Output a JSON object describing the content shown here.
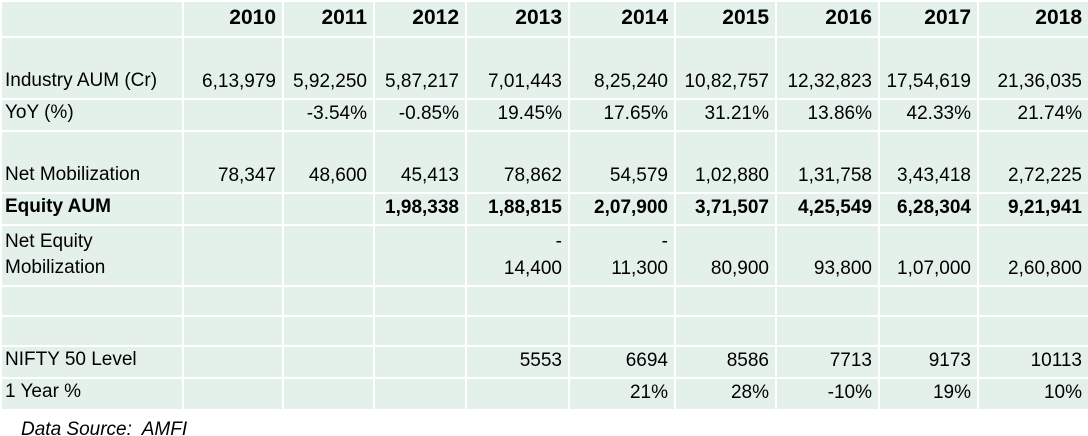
{
  "colors": {
    "cell_bg": "#e4f1ea",
    "gridline": "#ffffff",
    "text": "#000000"
  },
  "table": {
    "corner_label": "",
    "years": [
      "2010",
      "2011",
      "2012",
      "2013",
      "2014",
      "2015",
      "2016",
      "2017",
      "2018"
    ],
    "rows": [
      {
        "name": "industry-aum",
        "kind": "tall",
        "bold": false,
        "label": "Industry AUM (Cr)",
        "label2": "",
        "cells": [
          "6,13,979",
          "5,92,250",
          "5,87,217",
          "7,01,443",
          "8,25,240",
          "10,82,757",
          "12,32,823",
          "17,54,619",
          "21,36,035"
        ]
      },
      {
        "name": "yoy-pct",
        "kind": "normal",
        "bold": false,
        "label": "YoY (%)",
        "label2": "",
        "cells": [
          "",
          "-3.54%",
          "-0.85%",
          "19.45%",
          "17.65%",
          "31.21%",
          "13.86%",
          "42.33%",
          "21.74%"
        ]
      },
      {
        "name": "net-mobilization",
        "kind": "tall",
        "bold": false,
        "label": "Net Mobilization",
        "label2": "",
        "cells": [
          "78,347",
          "48,600",
          "45,413",
          "78,862",
          "54,579",
          "1,02,880",
          "1,31,758",
          "3,43,418",
          "2,72,225"
        ]
      },
      {
        "name": "equity-aum",
        "kind": "normal",
        "bold": true,
        "label": "Equity AUM",
        "label2": "",
        "cells": [
          "",
          "",
          "1,98,338",
          "1,88,815",
          "2,07,900",
          "3,71,507",
          "4,25,549",
          "6,28,304",
          "9,21,941"
        ]
      },
      {
        "name": "net-equity-mobilization",
        "kind": "split",
        "bold": false,
        "label": "Net Equity",
        "label2": "Mobilization",
        "cells_top": [
          "",
          "",
          "",
          "-",
          "-",
          "",
          "",
          "",
          ""
        ],
        "cells": [
          "",
          "",
          "",
          "14,400",
          "11,300",
          "80,900",
          "93,800",
          "1,07,000",
          "2,60,800"
        ]
      },
      {
        "name": "empty-row-1",
        "kind": "normal",
        "bold": false,
        "label": "",
        "label2": "",
        "cells": [
          "",
          "",
          "",
          "",
          "",
          "",
          "",
          "",
          ""
        ]
      },
      {
        "name": "empty-row-2",
        "kind": "normal",
        "bold": false,
        "label": "",
        "label2": "",
        "cells": [
          "",
          "",
          "",
          "",
          "",
          "",
          "",
          "",
          ""
        ]
      },
      {
        "name": "nifty-50-level",
        "kind": "normal",
        "bold": false,
        "label": "NIFTY 50 Level",
        "label2": "",
        "cells": [
          "",
          "",
          "",
          "5553",
          "6694",
          "8586",
          "7713",
          "9173",
          "10113"
        ]
      },
      {
        "name": "one-year-pct",
        "kind": "normal",
        "bold": false,
        "label": "1 Year %",
        "label2": "",
        "cells": [
          "",
          "",
          "",
          "",
          "21%",
          "28%",
          "-10%",
          "19%",
          "10%"
        ]
      }
    ]
  },
  "footer": {
    "data_source": "Data Source:  AMFI"
  },
  "chart_data": {
    "type": "table",
    "categories": [
      "2010",
      "2011",
      "2012",
      "2013",
      "2014",
      "2015",
      "2016",
      "2017",
      "2018"
    ],
    "series": [
      {
        "name": "Industry AUM (Cr)",
        "values": [
          613979,
          592250,
          587217,
          701443,
          825240,
          1082757,
          1232823,
          1754619,
          2136035
        ]
      },
      {
        "name": "YoY (%)",
        "values": [
          null,
          -3.54,
          -0.85,
          19.45,
          17.65,
          31.21,
          13.86,
          42.33,
          21.74
        ]
      },
      {
        "name": "Net Mobilization",
        "values": [
          78347,
          48600,
          45413,
          78862,
          54579,
          102880,
          131758,
          343418,
          272225
        ]
      },
      {
        "name": "Equity AUM",
        "values": [
          null,
          null,
          198338,
          188815,
          207900,
          371507,
          425549,
          628304,
          921941
        ]
      },
      {
        "name": "Net Equity Mobilization",
        "values": [
          null,
          null,
          null,
          14400,
          11300,
          80900,
          93800,
          107000,
          260800
        ]
      },
      {
        "name": "NIFTY 50 Level",
        "values": [
          null,
          null,
          null,
          5553,
          6694,
          8586,
          7713,
          9173,
          10113
        ]
      },
      {
        "name": "1 Year %",
        "values": [
          null,
          null,
          null,
          null,
          21,
          28,
          -10,
          19,
          10
        ]
      }
    ],
    "source_note": "Data Source:  AMFI"
  }
}
